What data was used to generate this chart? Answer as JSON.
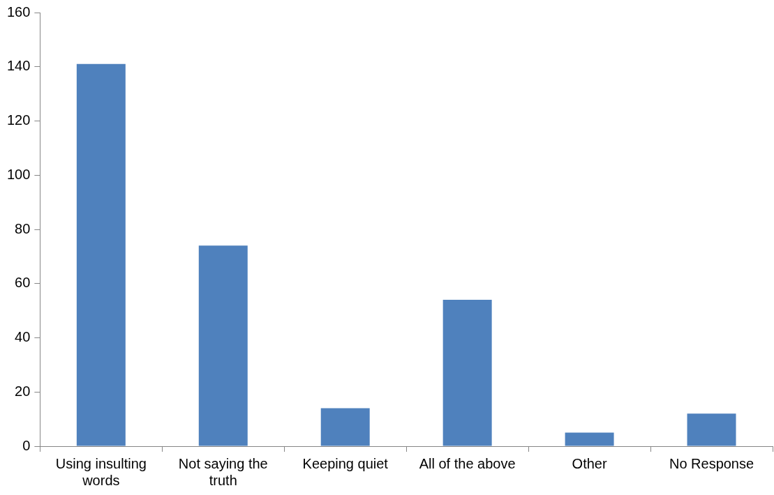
{
  "chart_data": {
    "type": "bar",
    "categories": [
      "Using insulting words",
      "Not saying the truth",
      "Keeping quiet",
      "All of the above",
      "Other",
      "No Response"
    ],
    "values": [
      141,
      74,
      14,
      54,
      5,
      12
    ],
    "color": "#4f81bd",
    "ylim": [
      0,
      160
    ],
    "yticks": [
      0,
      20,
      40,
      60,
      80,
      100,
      120,
      140,
      160
    ]
  }
}
